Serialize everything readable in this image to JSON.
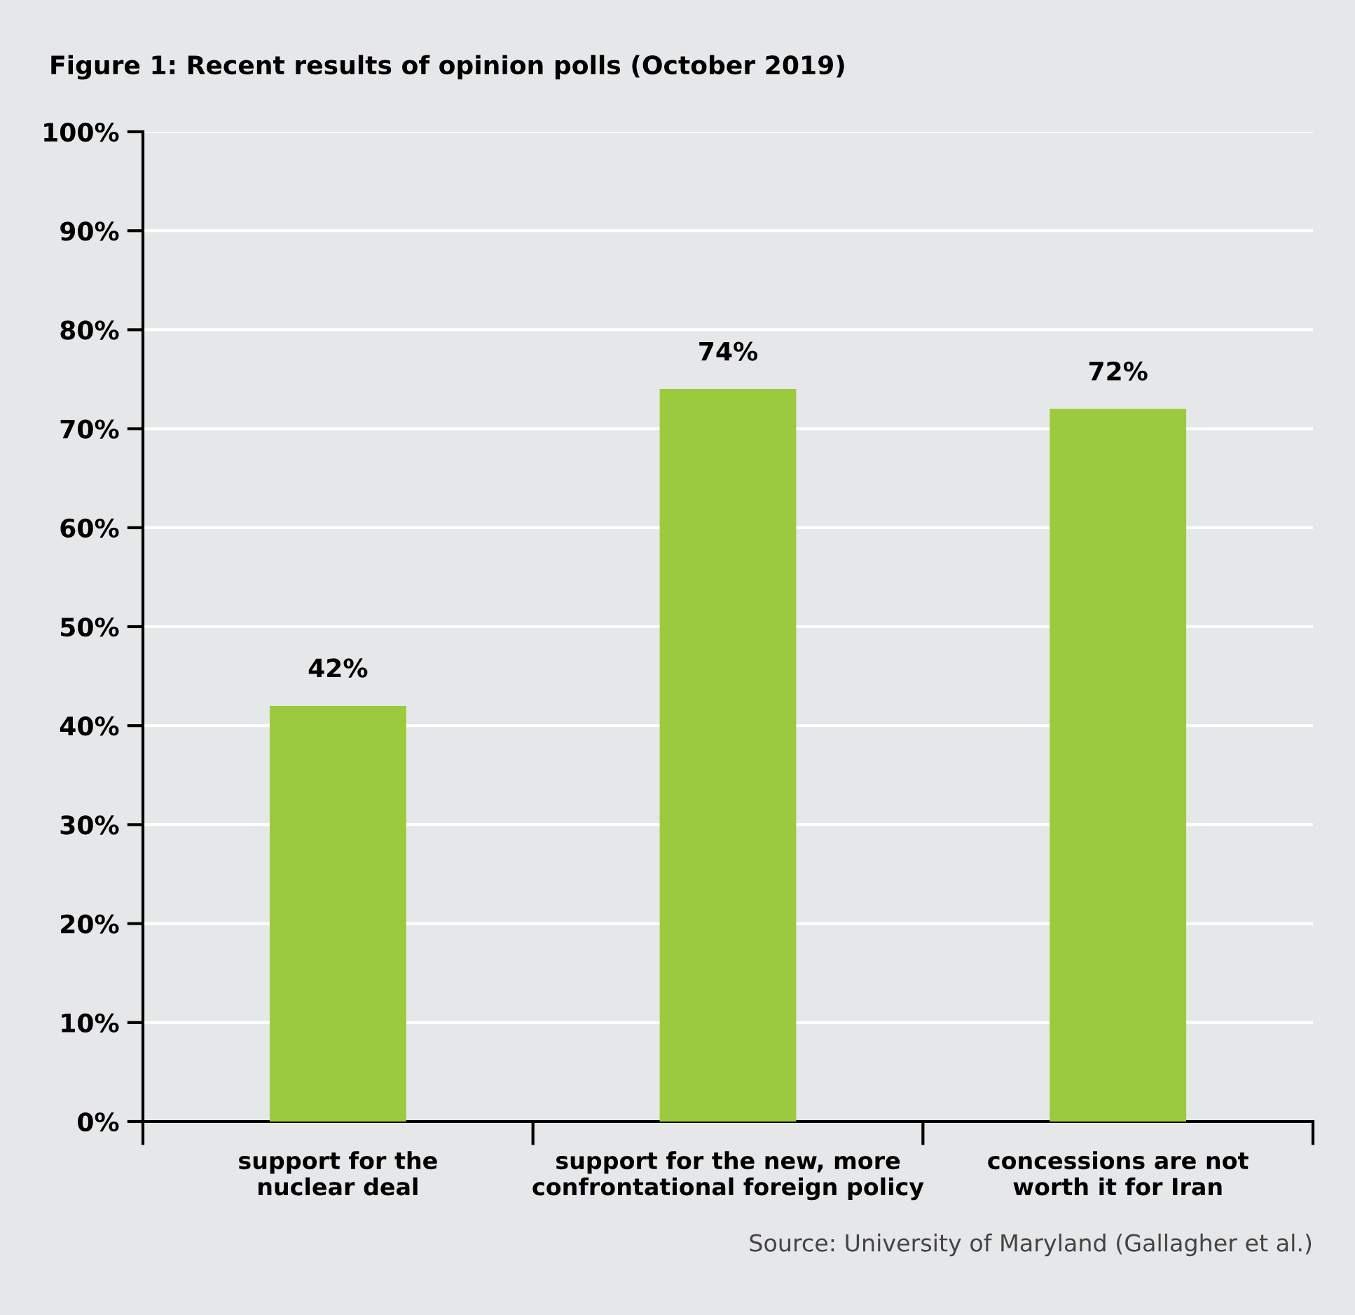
{
  "chart_data": {
    "type": "bar",
    "title": "Figure 1: Recent results of opinion polls (October 2019)",
    "categories": [
      "support for the\nnuclear deal",
      "support for the new, more\nconfrontational foreign policy",
      "concessions are not\nworth it for Iran"
    ],
    "values": [
      42,
      74,
      72
    ],
    "color": "#9bca3e",
    "value_labels": [
      "42%",
      "74%",
      "72%"
    ],
    "ylim": [
      0,
      100
    ],
    "yticks": [
      {
        "value": 0,
        "label": "0%"
      },
      {
        "value": 10,
        "label": "10%"
      },
      {
        "value": 20,
        "label": "20%"
      },
      {
        "value": 30,
        "label": "30%"
      },
      {
        "value": 40,
        "label": "40%"
      },
      {
        "value": 50,
        "label": "50%"
      },
      {
        "value": 60,
        "label": "60%"
      },
      {
        "value": 70,
        "label": "70%"
      },
      {
        "value": 80,
        "label": "80%"
      },
      {
        "value": 90,
        "label": "90%"
      },
      {
        "value": 100,
        "label": "100%"
      }
    ],
    "grid": "y",
    "legend": false,
    "annotations": [
      "Source: University of Maryland (Gallagher et al.)"
    ]
  }
}
